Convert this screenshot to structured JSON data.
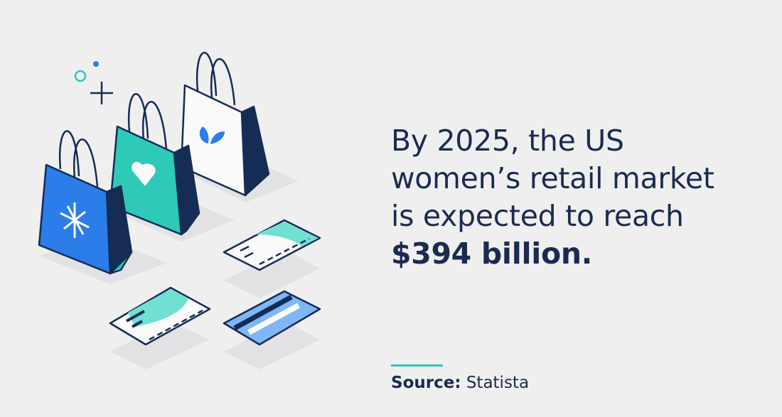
{
  "headline": {
    "lines": [
      "By 2025, the US",
      "women’s retail market",
      "is expected to reach"
    ],
    "highlight": "$394 billion."
  },
  "source": {
    "label": "Source:",
    "value": "Statista"
  }
}
